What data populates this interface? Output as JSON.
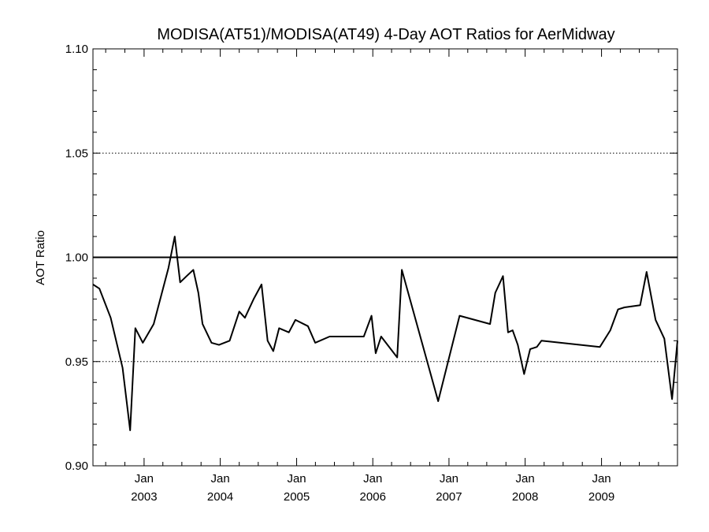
{
  "chart_data": {
    "type": "line",
    "title": "MODISA(AT51)/MODISA(AT49) 4-Day AOT Ratios for AerMidway",
    "ylabel": "AOT Ratio",
    "xlabel": "",
    "xlim": [
      "2002-05-01",
      "2009-12-31"
    ],
    "ylim": [
      0.9,
      1.1
    ],
    "y_ticks": [
      "0.90",
      "0.95",
      "1.00",
      "1.05",
      "1.10"
    ],
    "x_ticks": [
      {
        "date": "2003-01-01",
        "month": "Jan",
        "year": "2003"
      },
      {
        "date": "2004-01-01",
        "month": "Jan",
        "year": "2004"
      },
      {
        "date": "2005-01-01",
        "month": "Jan",
        "year": "2005"
      },
      {
        "date": "2006-01-01",
        "month": "Jan",
        "year": "2006"
      },
      {
        "date": "2007-01-01",
        "month": "Jan",
        "year": "2007"
      },
      {
        "date": "2008-01-01",
        "month": "Jan",
        "year": "2008"
      },
      {
        "date": "2009-01-01",
        "month": "Jan",
        "year": "2009"
      }
    ],
    "grid": "dotted horizontal at 0.95 and 1.05",
    "reference_line": 1.0,
    "series": [
      {
        "x": [
          "2002-05-01",
          "2002-06-01",
          "2002-07-25",
          "2002-09-20",
          "2002-10-26",
          "2002-11-20",
          "2002-12-26",
          "2003-02-16",
          "2003-04-28",
          "2003-05-28",
          "2003-06-23",
          "2003-07-24",
          "2003-08-25",
          "2003-09-18",
          "2003-10-08",
          "2003-11-20",
          "2003-12-26",
          "2004-02-15",
          "2004-04-01",
          "2004-04-28",
          "2004-06-09",
          "2004-07-17",
          "2004-08-15",
          "2004-09-11",
          "2004-10-09",
          "2004-11-25",
          "2004-12-26",
          "2005-02-24",
          "2005-03-31",
          "2005-06-08",
          "2005-11-19",
          "2005-12-26",
          "2006-01-15",
          "2006-02-10",
          "2006-04-28",
          "2006-05-20",
          "2006-11-10",
          "2007-02-21",
          "2007-07-17",
          "2007-08-11",
          "2007-09-17",
          "2007-10-11",
          "2007-11-02",
          "2007-11-27",
          "2007-12-27",
          "2008-01-25",
          "2008-02-26",
          "2008-03-19",
          "2008-12-24",
          "2009-02-12",
          "2009-03-21",
          "2009-04-21",
          "2009-07-05",
          "2009-08-05",
          "2009-09-17",
          "2009-10-29",
          "2009-12-05",
          "2009-12-31"
        ],
        "y": [
          0.987,
          0.985,
          0.971,
          0.947,
          0.917,
          0.966,
          0.959,
          0.968,
          0.995,
          1.01,
          0.988,
          0.991,
          0.994,
          0.983,
          0.968,
          0.959,
          0.958,
          0.96,
          0.974,
          0.971,
          0.98,
          0.987,
          0.96,
          0.955,
          0.966,
          0.964,
          0.97,
          0.967,
          0.959,
          0.962,
          0.962,
          0.972,
          0.954,
          0.962,
          0.952,
          0.994,
          0.931,
          0.972,
          0.968,
          0.983,
          0.991,
          0.964,
          0.965,
          0.958,
          0.944,
          0.956,
          0.957,
          0.96,
          0.957,
          0.965,
          0.975,
          0.976,
          0.977,
          0.993,
          0.97,
          0.961,
          0.932,
          0.96
        ]
      }
    ]
  }
}
